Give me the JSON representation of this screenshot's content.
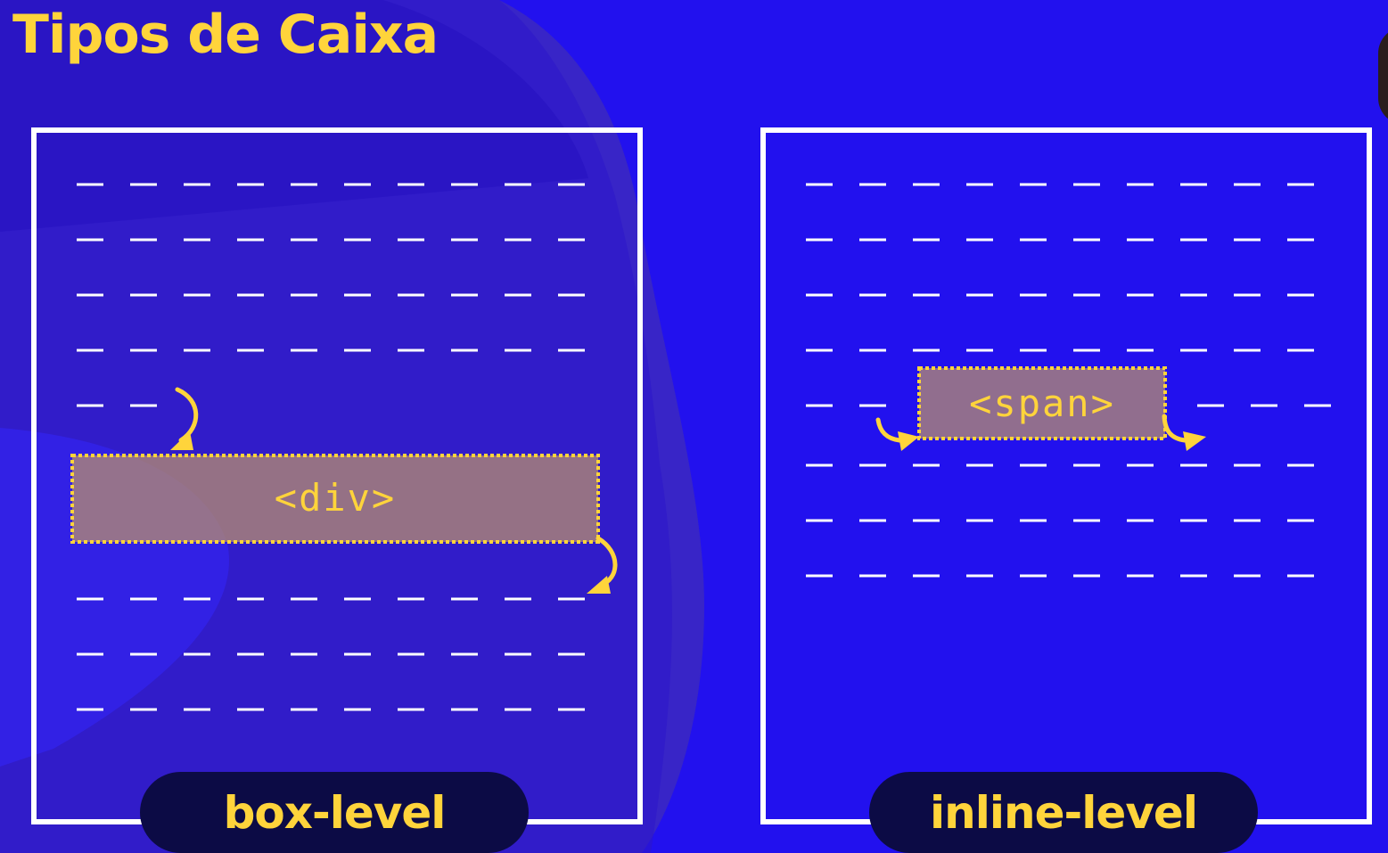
{
  "title": "Tipos de Caixa",
  "colors": {
    "background": "#2211ee",
    "accent": "#ffd43b",
    "panel_border": "#ffffff",
    "pill_bg": "#0c0b45",
    "tag_fill": "#b78e6e"
  },
  "panels": {
    "box": {
      "tag": "<div>",
      "label": "box-level"
    },
    "inline": {
      "tag": "<span>",
      "label": "inline-level"
    }
  }
}
